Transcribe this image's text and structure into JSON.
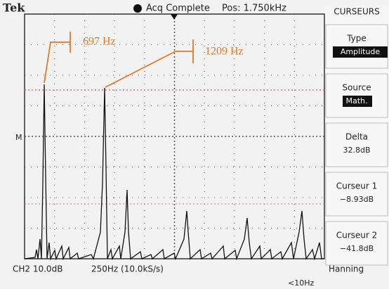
{
  "header": {
    "brand": "Tek",
    "status": "Acq Complete",
    "position": "Pos: 1.750kHz"
  },
  "marker": "M",
  "menu": {
    "title": "CURSEURS",
    "items": [
      {
        "label": "Type",
        "value": "Amplitude"
      },
      {
        "label": "Source",
        "value": "Math."
      },
      {
        "label": "Delta",
        "value": "32.8dB"
      },
      {
        "label": "Curseur 1",
        "value": "−8.93dB"
      },
      {
        "label": "Curseur 2",
        "value": "−41.8dB"
      }
    ]
  },
  "footer": {
    "channel": "CH2 10.0dB",
    "timebase": "250Hz (10.0kS/s)",
    "window": "Hanning",
    "note": "<10Hz"
  },
  "annotations": [
    "697 Hz",
    "1209 Hz"
  ]
}
